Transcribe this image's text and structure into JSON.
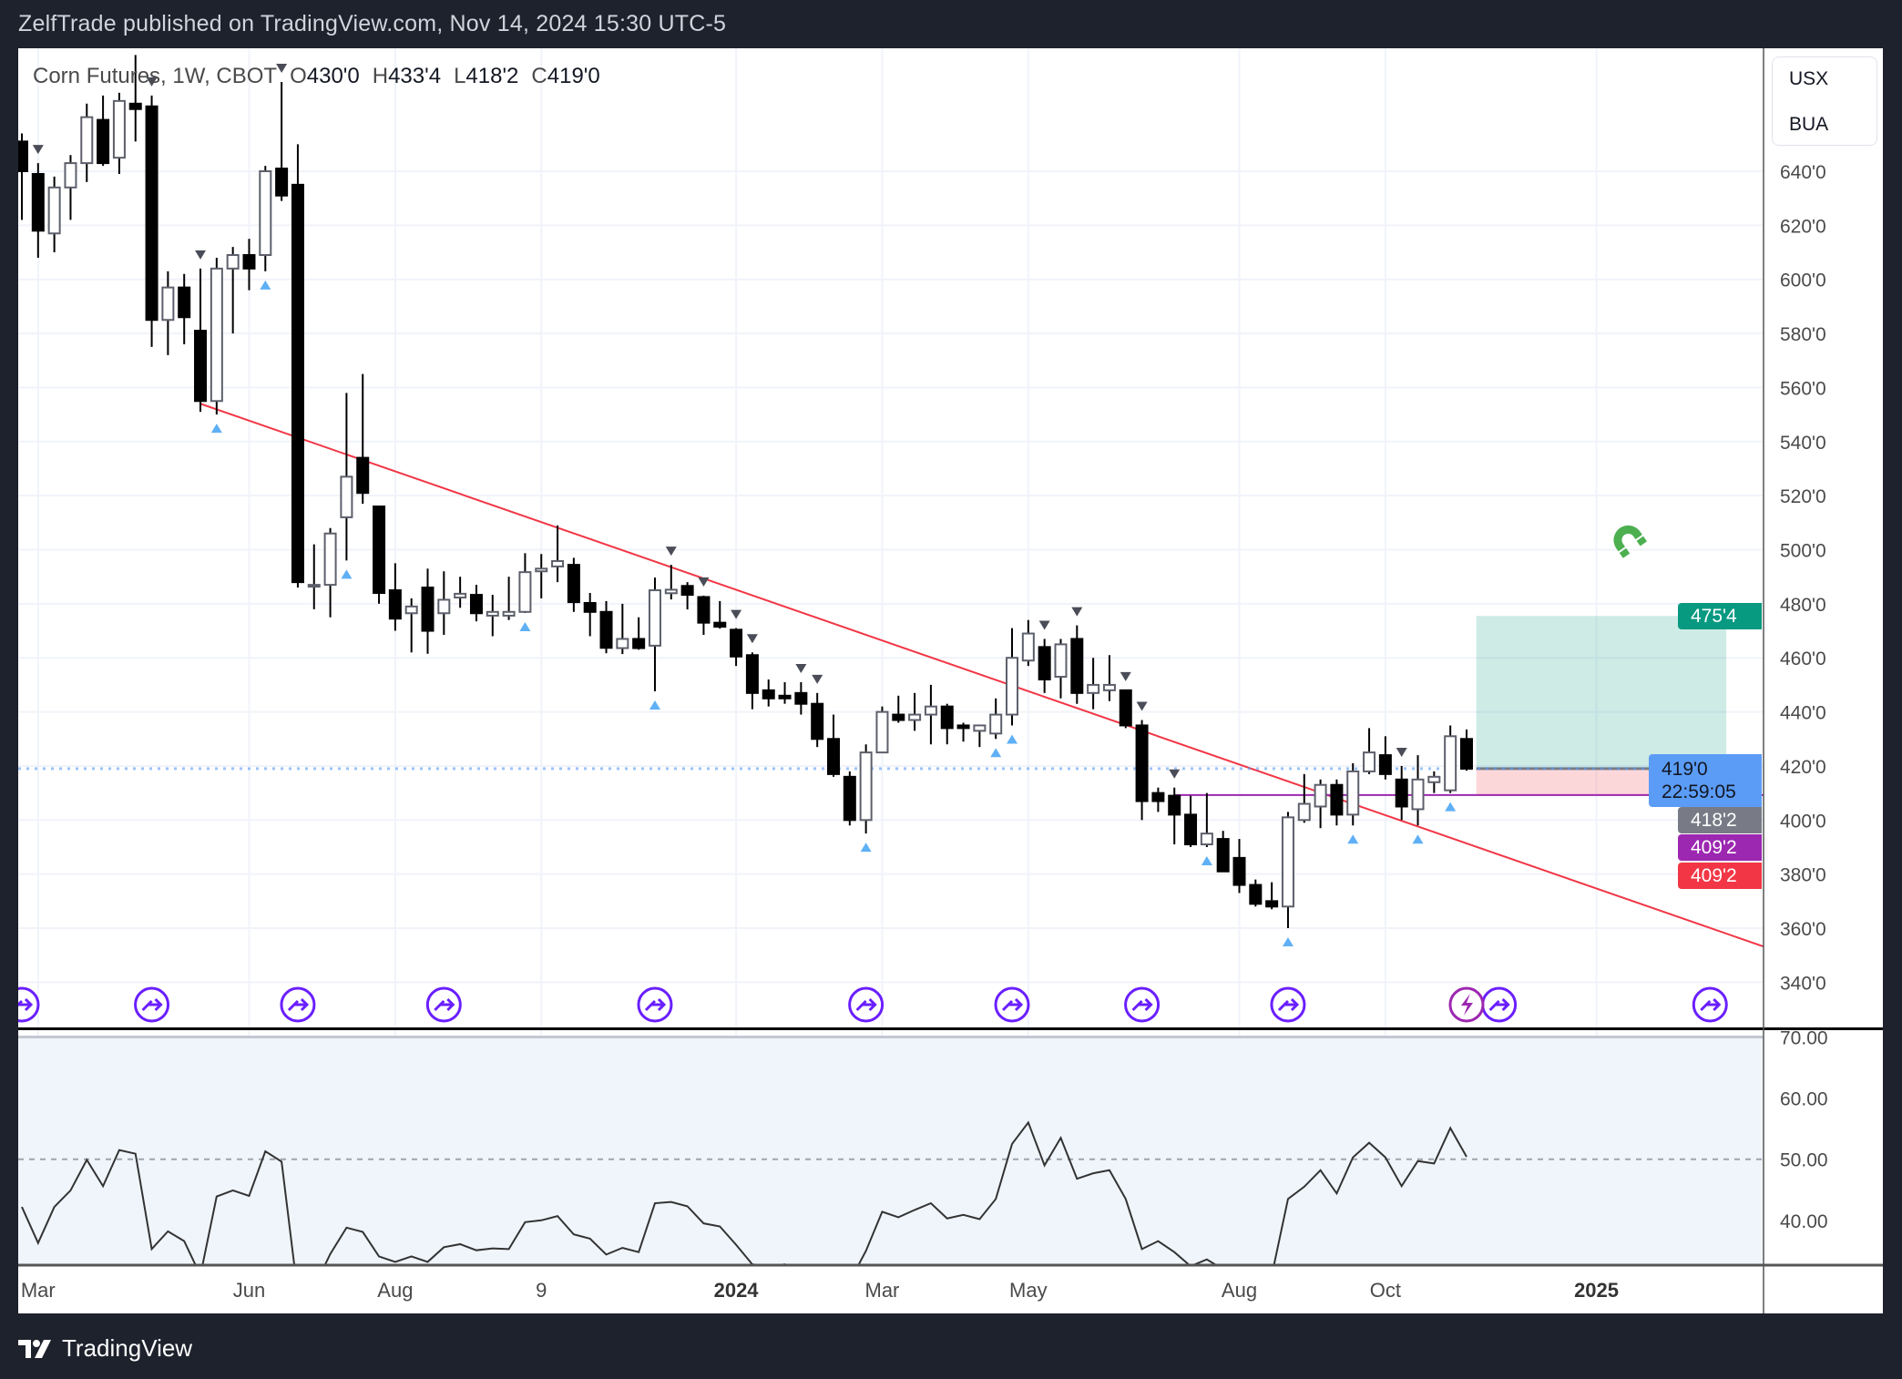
{
  "header": {
    "title": "ZelfTrade published on TradingView.com, Nov 14, 2024 15:30 UTC-5"
  },
  "legend": {
    "symbol": "Corn Futures, 1W, CBOT",
    "o_label": "O",
    "o": "430'0",
    "h_label": "H",
    "h": "433'4",
    "l_label": "L",
    "l": "418'2",
    "c_label": "C",
    "c": "419'0"
  },
  "unit_box": {
    "currency": "USX",
    "unit": "BUA"
  },
  "price_tags": {
    "target": "475'4",
    "last": "419'0",
    "countdown": "22:59:05",
    "low": "418'2",
    "hline": "409'2",
    "stop": "409'2"
  },
  "colors": {
    "up_border": "#5d606b",
    "down": "#000000",
    "trendline": "#f23645",
    "hline": "#9c27b0",
    "target_fill": "#089981",
    "stop_fill": "#f23645",
    "last_price": "#5b9cf6",
    "event": "#6a1fff",
    "magnet": "#4caf50"
  },
  "footer": {
    "brand": "TradingView"
  },
  "chart_data": {
    "type": "candlestick",
    "title": "Corn Futures, 1W, CBOT",
    "price_ticks": [
      "640'0",
      "620'0",
      "600'0",
      "580'0",
      "560'0",
      "540'0",
      "520'0",
      "500'0",
      "480'0",
      "460'0",
      "440'0",
      "420'0",
      "400'0",
      "380'0",
      "360'0",
      "340'0"
    ],
    "price_tick_values": [
      640,
      620,
      600,
      580,
      560,
      540,
      520,
      500,
      480,
      460,
      440,
      420,
      400,
      380,
      360,
      340
    ],
    "time_labels": [
      {
        "label": "Mar",
        "bar": 1,
        "bold": false
      },
      {
        "label": "Jun",
        "bar": 14,
        "bold": false
      },
      {
        "label": "Aug",
        "bar": 23,
        "bold": false
      },
      {
        "label": "9",
        "bar": 32,
        "bold": false
      },
      {
        "label": "2024",
        "bar": 44,
        "bold": true
      },
      {
        "label": "Mar",
        "bar": 53,
        "bold": false
      },
      {
        "label": "May",
        "bar": 62,
        "bold": false
      },
      {
        "label": "Aug",
        "bar": 75,
        "bold": false
      },
      {
        "label": "Oct",
        "bar": 84,
        "bold": false
      },
      {
        "label": "2025",
        "bar": 97,
        "bold": true
      }
    ],
    "ohlc": [
      [
        651,
        654,
        622,
        640
      ],
      [
        639,
        643,
        608,
        618
      ],
      [
        617,
        638,
        610,
        634
      ],
      [
        634,
        646,
        622,
        643
      ],
      [
        643,
        665,
        636,
        660
      ],
      [
        659,
        668,
        642,
        643
      ],
      [
        645,
        669,
        639,
        666
      ],
      [
        665,
        683,
        651,
        663
      ],
      [
        664,
        668,
        575,
        585
      ],
      [
        585,
        603,
        572,
        597
      ],
      [
        597,
        602,
        576,
        586
      ],
      [
        581,
        604,
        551,
        555
      ],
      [
        555,
        608,
        550,
        604
      ],
      [
        604,
        612,
        580,
        609
      ],
      [
        609,
        615,
        596,
        604
      ],
      [
        609,
        642,
        603,
        640
      ],
      [
        641,
        673,
        629,
        631
      ],
      [
        635,
        650,
        486,
        488
      ],
      [
        487,
        502,
        478,
        487
      ],
      [
        487,
        508,
        475,
        506
      ],
      [
        512,
        558,
        496,
        527
      ],
      [
        534,
        565,
        517,
        521
      ],
      [
        516,
        516,
        480,
        484
      ],
      [
        485,
        495,
        470,
        474.5
      ],
      [
        476.5,
        482,
        462,
        479
      ],
      [
        486,
        493,
        461.5,
        470
      ],
      [
        476.5,
        492,
        468.5,
        481.5
      ],
      [
        482.3,
        490,
        478.5,
        483.7
      ],
      [
        483.3,
        487,
        473.5,
        476.5
      ],
      [
        475.6,
        483.3,
        468,
        477
      ],
      [
        475.6,
        490,
        474,
        477
      ],
      [
        477,
        498.7,
        476.6,
        491.7
      ],
      [
        492,
        498.4,
        482,
        493
      ],
      [
        493.8,
        509,
        488,
        495.8
      ],
      [
        494.4,
        497,
        477,
        480.6
      ],
      [
        480.3,
        484,
        468,
        477
      ],
      [
        477,
        481,
        461.7,
        463.7
      ],
      [
        463.6,
        480,
        461.4,
        467
      ],
      [
        467,
        475,
        463,
        463.6
      ],
      [
        464.5,
        489.7,
        447.6,
        485
      ],
      [
        483.9,
        494.4,
        481.6,
        485.2
      ],
      [
        486.6,
        488,
        477.9,
        483.3
      ],
      [
        482.5,
        483,
        468.5,
        473
      ],
      [
        473,
        481,
        470.8,
        471.5
      ],
      [
        470.4,
        471,
        457,
        460.5
      ],
      [
        461,
        462,
        441,
        447
      ],
      [
        448,
        452,
        442,
        445
      ],
      [
        446,
        451,
        443,
        445
      ],
      [
        447,
        451,
        439,
        443
      ],
      [
        443,
        447,
        427,
        430
      ],
      [
        430,
        439,
        416,
        417
      ],
      [
        416,
        418,
        398,
        400
      ],
      [
        400,
        428,
        395,
        425
      ],
      [
        425,
        442,
        425,
        440
      ],
      [
        439,
        446,
        436,
        437
      ],
      [
        437,
        447,
        433,
        439
      ],
      [
        439,
        450,
        428,
        442
      ],
      [
        442,
        443,
        428,
        434
      ],
      [
        435,
        436,
        429,
        434
      ],
      [
        433,
        435,
        427,
        435
      ],
      [
        432,
        445,
        430,
        439
      ],
      [
        439,
        471,
        435,
        460
      ],
      [
        459,
        474,
        457,
        469
      ],
      [
        464,
        467,
        447,
        452
      ],
      [
        453,
        467,
        445,
        465
      ],
      [
        467,
        472,
        443,
        447
      ],
      [
        447,
        460,
        441,
        450
      ],
      [
        448,
        461,
        444,
        450
      ],
      [
        448,
        448,
        434,
        435
      ],
      [
        435,
        437,
        400,
        407
      ],
      [
        410,
        412,
        403,
        407
      ],
      [
        409,
        412,
        391,
        402
      ],
      [
        402,
        409,
        390,
        391
      ],
      [
        391,
        410,
        390,
        395
      ],
      [
        393,
        396,
        381,
        381
      ],
      [
        386,
        393,
        373,
        376
      ],
      [
        376,
        378,
        368,
        369
      ],
      [
        370,
        377,
        367,
        368
      ],
      [
        368,
        403,
        360,
        401
      ],
      [
        400,
        417,
        399,
        406
      ],
      [
        405,
        415,
        397,
        413
      ],
      [
        413,
        415,
        398,
        402
      ],
      [
        402,
        421,
        398,
        418
      ],
      [
        418,
        434,
        417,
        425
      ],
      [
        424,
        431,
        415,
        417
      ],
      [
        415,
        420,
        400,
        405
      ],
      [
        404,
        424,
        398,
        415
      ],
      [
        414,
        418,
        410,
        416
      ],
      [
        411,
        435,
        410,
        431
      ],
      [
        430,
        433.5,
        418.25,
        419
      ]
    ],
    "pivot_high_markers": [
      1,
      8,
      11,
      16,
      40,
      42,
      44,
      45,
      48,
      49,
      63,
      65,
      68,
      69,
      71,
      85
    ],
    "pivot_low_markers": [
      12,
      15,
      20,
      31,
      39,
      52,
      60,
      61,
      73,
      78,
      82,
      86,
      88
    ],
    "trendline": {
      "from": {
        "bar": 11,
        "price": 554
      },
      "to": {
        "bar": 107.4,
        "price": 353
      }
    },
    "horizontal_line": {
      "from_bar": 71,
      "price": 409.25
    },
    "last_price": 419,
    "position": {
      "from_bar": 89.6,
      "to_bar": 105,
      "entry": 419,
      "target": 475.5,
      "stop": 409.25
    },
    "event_markers": [
      0,
      8,
      17,
      26,
      39,
      52,
      61,
      69,
      78,
      91,
      104
    ],
    "lightning_marker": 89,
    "rsi": {
      "ticks": [
        "70.00",
        "60.00",
        "50.00",
        "40.00"
      ],
      "tick_values": [
        70,
        60,
        50,
        40
      ],
      "midline": 50,
      "values": [
        42.2,
        36.3,
        42.2,
        44.9,
        49.9,
        45.6,
        51.5,
        50.9,
        35.3,
        38.2,
        36.6,
        31,
        43.9,
        44.9,
        44.0,
        51.3,
        49.6,
        28,
        29,
        34.5,
        38.8,
        38.1,
        34.1,
        33.2,
        34.1,
        33.2,
        35.6,
        36.1,
        35.1,
        35.4,
        35.3,
        39.7,
        40.0,
        40.7,
        37.7,
        37.0,
        34.4,
        35.5,
        34.8,
        42.8,
        43.0,
        42.3,
        39.5,
        39.0,
        36.0,
        32.8,
        32.5,
        32.8,
        31,
        30,
        29,
        30,
        35,
        41.4,
        40.5,
        41.7,
        42.8,
        40.3,
        40.9,
        40.2,
        43.5,
        52.5,
        56.0,
        49.0,
        53.5,
        46.8,
        47.7,
        48.2,
        43.5,
        35.3,
        36.6,
        34.8,
        32.5,
        33.6,
        32,
        31,
        30.5,
        31,
        43.5,
        45.5,
        48.2,
        44.4,
        50.3,
        52.7,
        50.3,
        45.6,
        49.7,
        49.3,
        55.1,
        50.4
      ]
    }
  }
}
